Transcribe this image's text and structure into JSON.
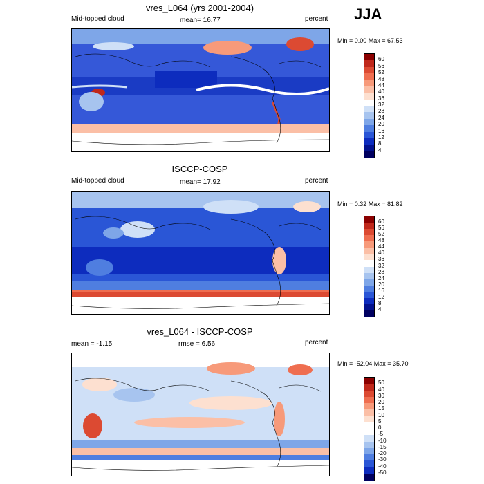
{
  "season": "JJA",
  "panels": [
    {
      "title": "vres_L064 (yrs 2001-2004)",
      "left_label": "Mid-topped cloud",
      "center_label": "mean=  16.77",
      "right_label": "percent",
      "minmax": "Min =   0.00 Max =  67.53",
      "scale": "cloud"
    },
    {
      "title": "ISCCP-COSP",
      "left_label": "Mid-topped cloud",
      "center_label": "mean=  17.92",
      "right_label": "percent",
      "minmax": "Min =   0.32 Max =  81.82",
      "scale": "cloud"
    },
    {
      "title": "vres_L064 - ISCCP-COSP",
      "left_label": "mean =  -1.15",
      "center_label": "rmse =   6.56",
      "right_label": "percent",
      "minmax": "Min = -52.04 Max =  35.70",
      "scale": "diff"
    }
  ],
  "colorbars": {
    "cloud": {
      "labels": [
        "60",
        "56",
        "52",
        "48",
        "44",
        "40",
        "36",
        "32",
        "28",
        "24",
        "20",
        "16",
        "12",
        "8",
        "4"
      ],
      "colors": [
        "#8b0000",
        "#c0281b",
        "#dc4a32",
        "#ef6e50",
        "#f79a7a",
        "#fbbfa6",
        "#fde0d0",
        "#ffffff",
        "#cfe0f7",
        "#a7c4ef",
        "#7ea6e8",
        "#4f7ee0",
        "#2a56d6",
        "#0d2cbe",
        "#03128e",
        "#000060"
      ]
    },
    "diff": {
      "labels": [
        "50",
        "40",
        "30",
        "20",
        "15",
        "10",
        "5",
        "0",
        "-5",
        "-10",
        "-15",
        "-20",
        "-30",
        "-40",
        "-50"
      ],
      "colors": [
        "#8b0000",
        "#c0281b",
        "#dc4a32",
        "#ef6e50",
        "#f79a7a",
        "#fbbfa6",
        "#fde0d0",
        "#ffffff",
        "#ffffff",
        "#cfe0f7",
        "#a7c4ef",
        "#7ea6e8",
        "#4f7ee0",
        "#2a56d6",
        "#0d2cbe",
        "#000060"
      ]
    }
  }
}
